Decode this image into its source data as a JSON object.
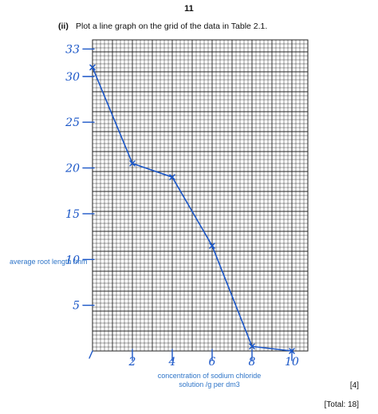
{
  "page_number": "11",
  "question": {
    "number": "(ii)",
    "text": "Plot a line graph on the grid of the data in Table 2.1."
  },
  "marks": "[4]",
  "total": "[Total: 18]",
  "colors": {
    "ink": "#1a56c7",
    "label": "#2f75c8",
    "grid": "#222222"
  },
  "chart_data": {
    "type": "line",
    "ylabel": "average root length /mm",
    "xlabel": "concentration of sodium chloride solution /g per dm3",
    "xlim": [
      0,
      10.8
    ],
    "ylim": [
      0,
      34
    ],
    "grid": true,
    "x_tick_values": [
      2,
      4,
      6,
      8,
      10
    ],
    "x_tick_labels": [
      "2",
      "4",
      "6",
      "8",
      "10"
    ],
    "y_tick_values": [
      5,
      10,
      15,
      20,
      25,
      30,
      33
    ],
    "y_tick_labels": [
      "5",
      "10",
      "15",
      "20",
      "25",
      "30",
      "33"
    ],
    "series": [
      {
        "x": [
          0,
          2,
          4,
          6,
          8,
          10
        ],
        "y": [
          31,
          20.5,
          19,
          11.5,
          0.5,
          0
        ]
      }
    ]
  }
}
